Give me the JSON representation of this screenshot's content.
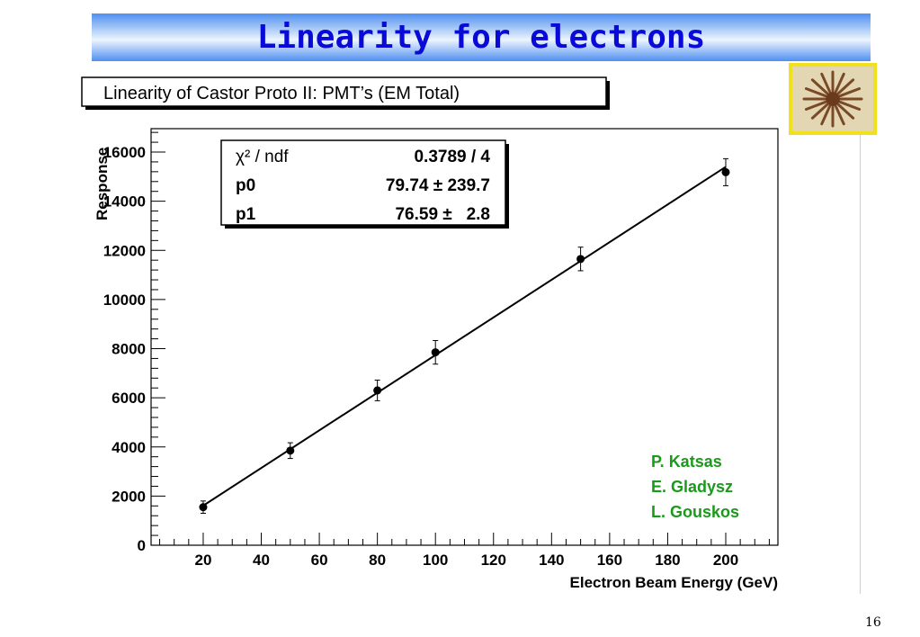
{
  "slide": {
    "title": "Linearity for electrons",
    "page_number": "16"
  },
  "authors": [
    "P. Katsas",
    "E. Gladysz",
    "L. Gouskos"
  ],
  "colors": {
    "title_text": "#0a0ad8",
    "title_bar": "#4f8ff0",
    "authors": "#1a9a1a",
    "stamp_border": "#f1e01c"
  },
  "chart_data": {
    "type": "scatter",
    "title": "Linearity of Castor Proto II: PMT’s (EM Total)",
    "xlabel": "Electron Beam Energy (GeV)",
    "ylabel": "Response",
    "xlim": [
      0,
      220
    ],
    "ylim": [
      0,
      16500
    ],
    "x_ticks": [
      20,
      40,
      60,
      80,
      100,
      120,
      140,
      160,
      180,
      200
    ],
    "y_ticks": [
      0,
      2000,
      4000,
      6000,
      8000,
      10000,
      12000,
      14000,
      16000
    ],
    "x_tick_labels": [
      "20",
      "40",
      "60",
      "80",
      "100",
      "120",
      "140",
      "160",
      "180",
      "200"
    ],
    "y_tick_labels": [
      "0",
      "2000",
      "4000",
      "6000",
      "8000",
      "10000",
      "12000",
      "14000",
      "16000"
    ],
    "series": [
      {
        "x": [
          20,
          50,
          80,
          100,
          150,
          200
        ],
        "y": [
          1550,
          3850,
          6300,
          7850,
          11650,
          15180
        ],
        "yerr": [
          250,
          320,
          420,
          480,
          480,
          550
        ]
      }
    ],
    "fit": {
      "type": "linear",
      "p0": 79.74,
      "p1": 76.59,
      "x_range": [
        20,
        200
      ]
    },
    "stats_box": {
      "rows": [
        {
          "label": "χ² / ndf",
          "value": "0.3789 / 4"
        },
        {
          "label": "p0",
          "value": "79.74 ± 239.7"
        },
        {
          "label": "p1",
          "value": "76.59 ±   2.8"
        }
      ]
    }
  }
}
